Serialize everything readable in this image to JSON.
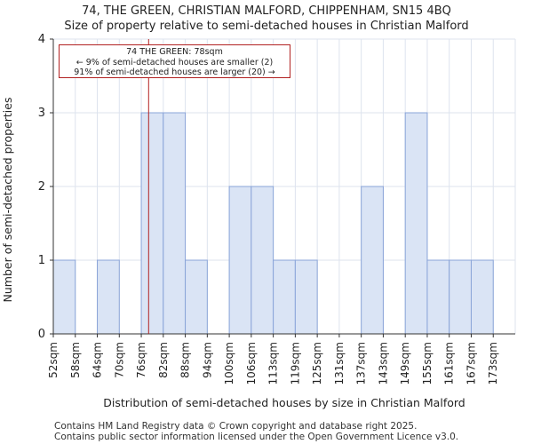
{
  "title_line1": "74, THE GREEN, CHRISTIAN MALFORD, CHIPPENHAM, SN15 4BQ",
  "title_line2": "Size of property relative to semi-detached houses in Christian Malford",
  "footer_line1": "Contains HM Land Registry data © Crown copyright and database right 2025.",
  "footer_line2": "Contains public sector information licensed under the Open Government Licence v3.0.",
  "annotation": {
    "line1": "74 THE GREEN: 78sqm",
    "line2": "← 9% of semi-detached houses are smaller (2)",
    "line3": "91% of semi-detached houses are larger (20) →"
  },
  "colors": {
    "bar_fill": "#dae4f5",
    "bar_stroke": "#8aa4d8",
    "marker": "#b22222",
    "grid": "#dde3ee"
  },
  "chart_data": {
    "type": "bar",
    "xlabel": "Distribution of semi-detached houses by size in Christian Malford",
    "ylabel": "Number of semi-detached properties",
    "categories": [
      "52sqm",
      "58sqm",
      "64sqm",
      "70sqm",
      "76sqm",
      "82sqm",
      "88sqm",
      "94sqm",
      "100sqm",
      "106sqm",
      "113sqm",
      "119sqm",
      "125sqm",
      "131sqm",
      "137sqm",
      "143sqm",
      "149sqm",
      "155sqm",
      "161sqm",
      "167sqm",
      "173sqm"
    ],
    "values": [
      1,
      0,
      1,
      0,
      3,
      3,
      1,
      0,
      2,
      2,
      1,
      1,
      0,
      0,
      2,
      0,
      3,
      1,
      1,
      1,
      0
    ],
    "ylim": [
      0,
      4
    ],
    "yticks": [
      0,
      1,
      2,
      3,
      4
    ],
    "grid": true,
    "marker_value": 78,
    "marker_label": "74 THE GREEN: 78sqm"
  }
}
